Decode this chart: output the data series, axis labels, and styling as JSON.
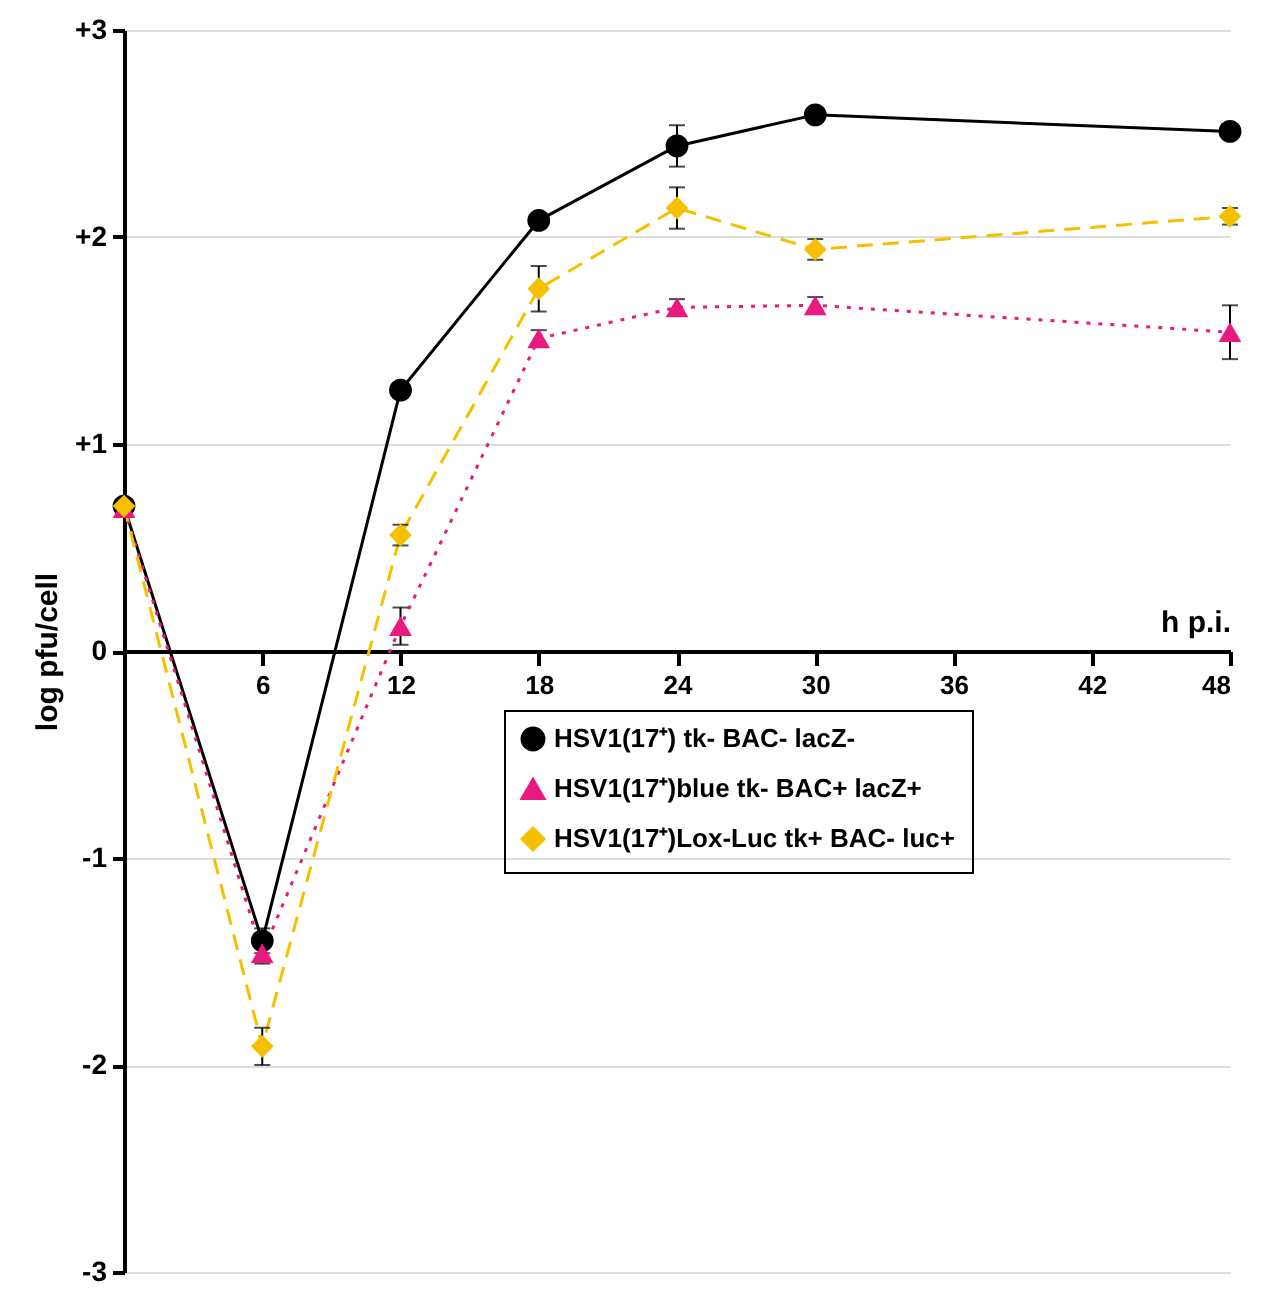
{
  "chart_data": {
    "type": "line",
    "xlabel": "h p.i.",
    "ylabel": "log pfu/cell",
    "x": [
      0,
      6,
      12,
      18,
      24,
      30,
      48
    ],
    "series": [
      {
        "name": "HSV1(17⁺) tk- BAC- lacZ-",
        "color": "#000000",
        "marker": "circle",
        "line_style": "solid",
        "values": [
          0.7,
          -1.4,
          1.26,
          2.08,
          2.44,
          2.59,
          2.51
        ],
        "errors": [
          null,
          0.06,
          null,
          null,
          0.1,
          null,
          null
        ]
      },
      {
        "name": "HSV1(17⁺)blue tk- BAC+ lacZ+",
        "color": "#e8197f",
        "marker": "triangle",
        "line_style": "dotted",
        "values": [
          0.69,
          -1.46,
          0.12,
          1.51,
          1.66,
          1.67,
          1.54
        ],
        "errors": [
          null,
          0.05,
          0.09,
          0.04,
          0.04,
          0.04,
          0.13
        ]
      },
      {
        "name": "HSV1(17⁺)Lox-Luc tk+ BAC- luc+",
        "color": "#f5c000",
        "marker": "diamond",
        "line_style": "dashed",
        "values": [
          0.7,
          -1.91,
          0.56,
          1.75,
          2.14,
          1.94,
          2.1
        ],
        "errors": [
          null,
          0.09,
          0.05,
          0.11,
          0.1,
          0.05,
          0.04
        ]
      }
    ],
    "xlim": [
      0,
      48
    ],
    "xticks": [
      6,
      12,
      18,
      24,
      30,
      36,
      42,
      48
    ],
    "ylim": [
      -3,
      3
    ],
    "yticks": [
      {
        "value": -3,
        "label": "-3"
      },
      {
        "value": -2,
        "label": "-2"
      },
      {
        "value": -1,
        "label": "-1"
      },
      0,
      {
        "value": 1,
        "label": "+1"
      },
      {
        "value": 2,
        "label": "+2"
      },
      {
        "value": 3,
        "label": "+3"
      }
    ],
    "grid": "y",
    "legend": "right"
  }
}
